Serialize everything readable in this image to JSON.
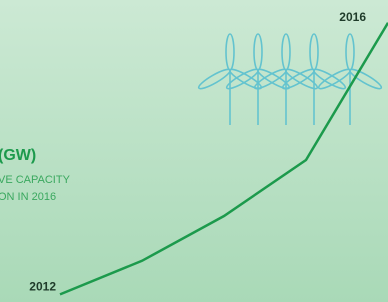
{
  "chart_data": {
    "type": "line",
    "texts": [
      "(GW)",
      "VE CAPACITY",
      "ON IN 2016"
    ],
    "categories": [
      "2012",
      null,
      null,
      null,
      "2016"
    ],
    "values": [
      2,
      14,
      30,
      50,
      99
    ],
    "color": "#1c9a4c",
    "ylim": [
      0,
      100
    ]
  }
}
